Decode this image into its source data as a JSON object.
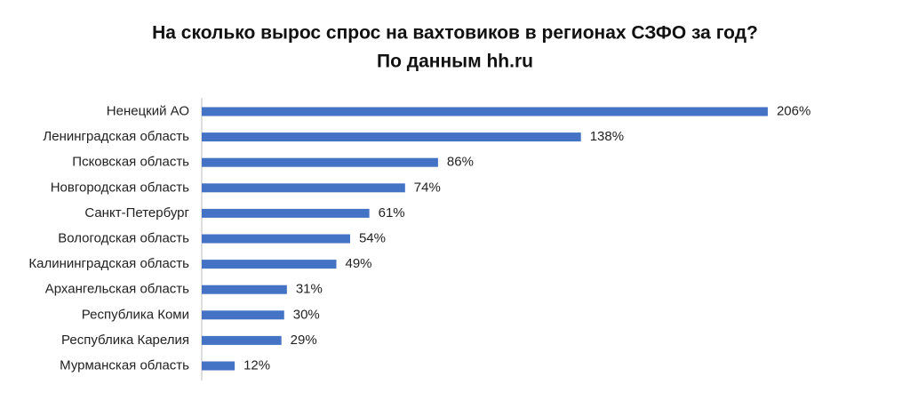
{
  "chart_data": {
    "type": "bar",
    "orientation": "horizontal",
    "title": "На сколько вырос спрос на вахтовиков в регионах СЗФО за год?",
    "subtitle": "По данным hh.ru",
    "categories": [
      "Ненецкий АО",
      "Ленинградская область",
      "Псковская область",
      "Новгородская область",
      "Санкт-Петербург",
      "Вологодская область",
      "Калининградская область",
      "Архангельская область",
      "Республика Коми",
      "Республика Карелия",
      "Мурманская область"
    ],
    "values": [
      206,
      138,
      86,
      74,
      61,
      54,
      49,
      31,
      30,
      29,
      12
    ],
    "value_labels": [
      "206%",
      "138%",
      "86%",
      "74%",
      "61%",
      "54%",
      "49%",
      "31%",
      "30%",
      "29%",
      "12%"
    ],
    "color": "#4472c4"
  }
}
